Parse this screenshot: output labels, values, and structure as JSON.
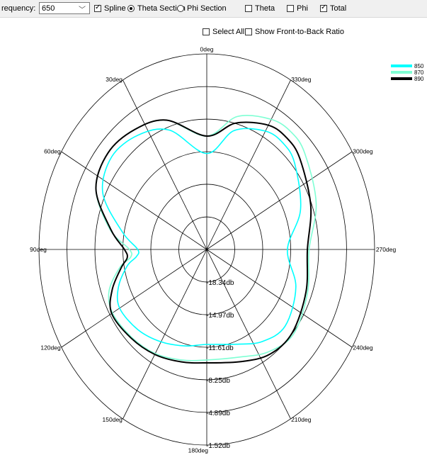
{
  "toolbar": {
    "frequency_label": "requency:",
    "frequency_value": "650",
    "spline_label": "Spline",
    "spline_checked": true,
    "theta_section_label": "Theta Section",
    "phi_section_label": "Phi Section",
    "theta_label": "Theta",
    "phi_label": "Phi",
    "total_label": "Total",
    "section_mode": "theta"
  },
  "options": {
    "select_all_label": "Select All",
    "front_to_back_label": "Show Front-to-Back Ratio"
  },
  "chart_data": {
    "type": "polar-line",
    "angle_labels": [
      "0deg",
      "30deg",
      "60deg",
      "90deg",
      "120deg",
      "150deg",
      "180deg",
      "210deg",
      "240deg",
      "270deg",
      "300deg",
      "330deg"
    ],
    "radial_labels": [
      "-18.34db",
      "-14.97db",
      "-11.61db",
      "-8.25db",
      "-4.89db",
      "-1.52db"
    ],
    "radial_range_db": [
      -21.7,
      -1.52
    ],
    "legend_placement": "top-right",
    "series": [
      {
        "name": "850",
        "color": "#00ffff",
        "angles": [
          0,
          20,
          35,
          50,
          65,
          80,
          90,
          95,
          100,
          110,
          120,
          135,
          150,
          165,
          180,
          200,
          215,
          230,
          250,
          270,
          290,
          310,
          320,
          330,
          345
        ],
        "values": [
          -11.8,
          -8.6,
          -7.3,
          -6.8,
          -7.9,
          -11.4,
          -13.4,
          -13.2,
          -12.0,
          -10.4,
          -9.6,
          -10.0,
          -10.7,
          -11.4,
          -11.9,
          -11.3,
          -10.1,
          -9.4,
          -10.3,
          -12.0,
          -9.7,
          -7.9,
          -7.4,
          -7.6,
          -9.0
        ]
      },
      {
        "name": "870",
        "color": "#7fffd4",
        "angles": [
          0,
          20,
          35,
          50,
          65,
          80,
          90,
          95,
          100,
          110,
          120,
          135,
          150,
          165,
          180,
          200,
          215,
          230,
          250,
          270,
          290,
          310,
          320,
          330,
          345
        ],
        "values": [
          -10.0,
          -7.5,
          -6.6,
          -6.2,
          -7.0,
          -9.9,
          -12.4,
          -12.5,
          -11.1,
          -9.2,
          -8.6,
          -8.9,
          -9.3,
          -9.9,
          -10.3,
          -9.9,
          -8.8,
          -8.1,
          -8.8,
          -9.4,
          -7.7,
          -6.3,
          -5.9,
          -6.2,
          -7.5
        ]
      },
      {
        "name": "890",
        "color": "#000000",
        "angles": [
          0,
          20,
          35,
          50,
          65,
          80,
          90,
          95,
          100,
          110,
          120,
          135,
          150,
          165,
          180,
          200,
          215,
          230,
          250,
          270,
          290,
          310,
          320,
          330,
          345
        ],
        "values": [
          -10.0,
          -7.5,
          -6.6,
          -6.2,
          -7.0,
          -10.0,
          -11.8,
          -12.1,
          -11.3,
          -9.6,
          -8.5,
          -8.8,
          -9.2,
          -9.7,
          -10.0,
          -9.4,
          -8.5,
          -8.3,
          -9.0,
          -9.6,
          -8.4,
          -7.1,
          -6.7,
          -6.9,
          -8.2
        ]
      }
    ]
  }
}
